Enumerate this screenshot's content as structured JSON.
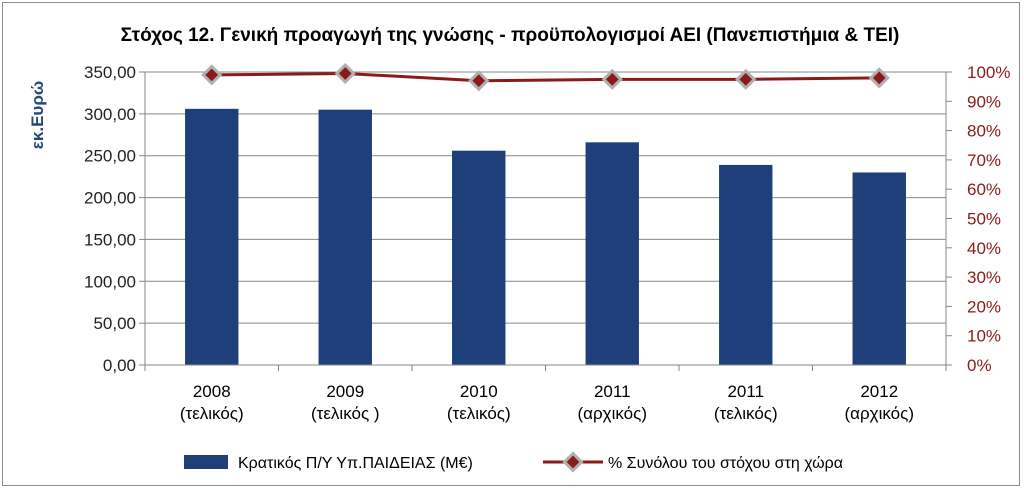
{
  "chart_data": {
    "type": "bar",
    "title": "Στόχος 12. Γενική προαγωγή της γνώσης - προϋπολογισμοί ΑΕΙ (Πανεπιστήμια & ΤΕΙ)",
    "categories": [
      [
        "2008",
        "(τελικός)"
      ],
      [
        "2009",
        "(τελικός )"
      ],
      [
        "2010",
        "(τελικός)"
      ],
      [
        "2011",
        "(αρχικός)"
      ],
      [
        "2011",
        "(τελικός)"
      ],
      [
        "2012",
        "(αρχικός)"
      ]
    ],
    "series": [
      {
        "name": "Κρατικός Π/Υ Υπ.ΠΑΙΔΕΙΑΣ (Μ€)",
        "type": "bar",
        "axis": "left",
        "color": "#1f3f7a",
        "values": [
          306,
          305,
          256,
          266,
          239,
          230
        ]
      },
      {
        "name": "% Συνόλου του στόχου στη χώρα",
        "type": "line",
        "axis": "right",
        "color": "#8b1a1a",
        "marker_color": "#b0b0b0",
        "values": [
          0.99,
          0.995,
          0.97,
          0.975,
          0.975,
          0.98
        ]
      }
    ],
    "ylabel": "εκ.Ευρώ",
    "ylim": [
      0,
      350
    ],
    "yticks": [
      "0,00",
      "50,00",
      "100,00",
      "150,00",
      "200,00",
      "250,00",
      "300,00",
      "350,00"
    ],
    "y2lim": [
      0,
      1
    ],
    "y2ticks": [
      "0%",
      "10%",
      "20%",
      "30%",
      "40%",
      "50%",
      "60%",
      "70%",
      "80%",
      "90%",
      "100%"
    ],
    "grid": true,
    "legend_position": "bottom"
  }
}
